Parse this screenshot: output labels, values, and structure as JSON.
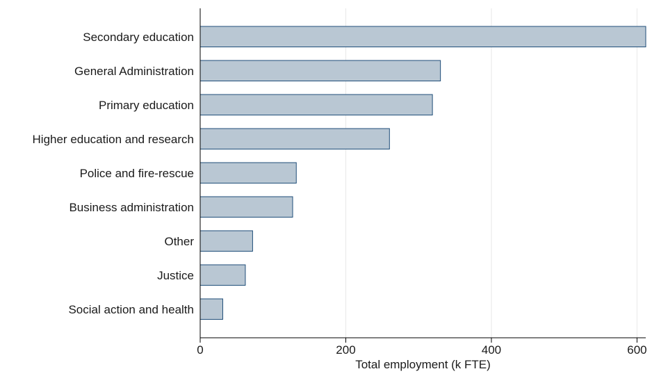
{
  "chart_data": {
    "type": "bar",
    "orientation": "horizontal",
    "categories": [
      "Secondary education",
      "General Administration",
      "Primary education",
      "Higher education and research",
      "Police and fire-rescue",
      "Business administration",
      "Other",
      "Justice",
      "Social action and health"
    ],
    "values": [
      612,
      330,
      319,
      260,
      132,
      127,
      72,
      62,
      31
    ],
    "xlabel": "Total employment (k FTE)",
    "ylabel": "",
    "xlim": [
      0,
      612
    ],
    "xticks": [
      0,
      200,
      400,
      600
    ],
    "xtick_labels": [
      "0",
      "200",
      "400",
      "600"
    ],
    "grid": "vertical",
    "colors": {
      "bar_fill": "#b9c7d3",
      "bar_stroke": "#1f4e79",
      "grid": "#e8e8e8",
      "axis": "#000000"
    }
  }
}
